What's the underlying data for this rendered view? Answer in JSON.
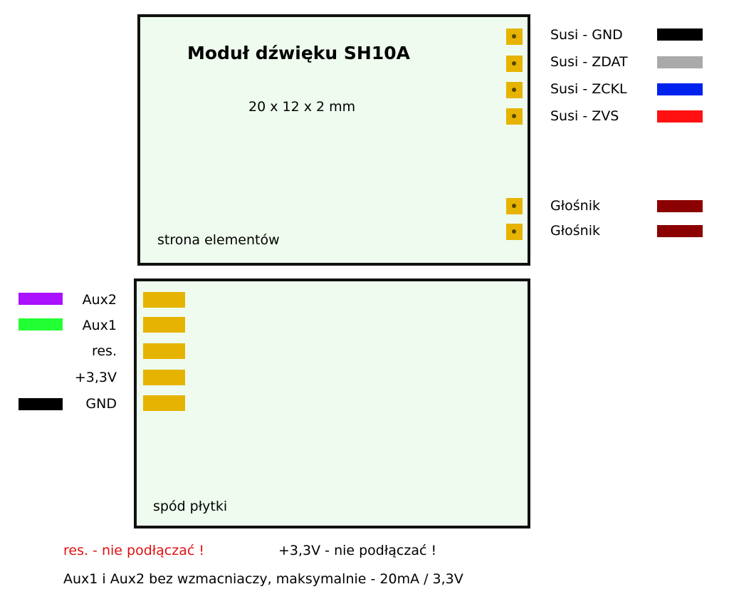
{
  "top_board": {
    "title": "Moduł dźwięku SH10A",
    "dimensions": "20 x 12 x 2 mm",
    "side_label": "strona elementów"
  },
  "bottom_board": {
    "side_label": "spód płytki"
  },
  "right_connections": [
    {
      "label": "Susi - GND",
      "color": "#000000"
    },
    {
      "label": "Susi - ZDAT",
      "color": "#a9a9a9"
    },
    {
      "label": "Susi - ZCKL",
      "color": "#0022ee"
    },
    {
      "label": "Susi - ZVS",
      "color": "#ff1111"
    },
    {
      "label": "Głośnik",
      "color": "#8b0000"
    },
    {
      "label": "Głośnik",
      "color": "#8b0000"
    }
  ],
  "left_connections": [
    {
      "label": "Aux2",
      "color": "#aa11ff"
    },
    {
      "label": "Aux1",
      "color": "#22ff33"
    },
    {
      "label": "res.",
      "color": ""
    },
    {
      "label": "+3,3V",
      "color": ""
    },
    {
      "label": "GND",
      "color": "#000000"
    }
  ],
  "notes": {
    "res_warning": "res. - nie podłączać !",
    "v33_warning": "+3,3V - nie podłączać !",
    "aux_info": "Aux1 i Aux2 bez wzmacniaczy, maksymalnie - 20mA / 3,3V"
  },
  "colors": {
    "board_fill": "#eefbee",
    "pad": "#e6b400",
    "warning": "#e01010"
  }
}
